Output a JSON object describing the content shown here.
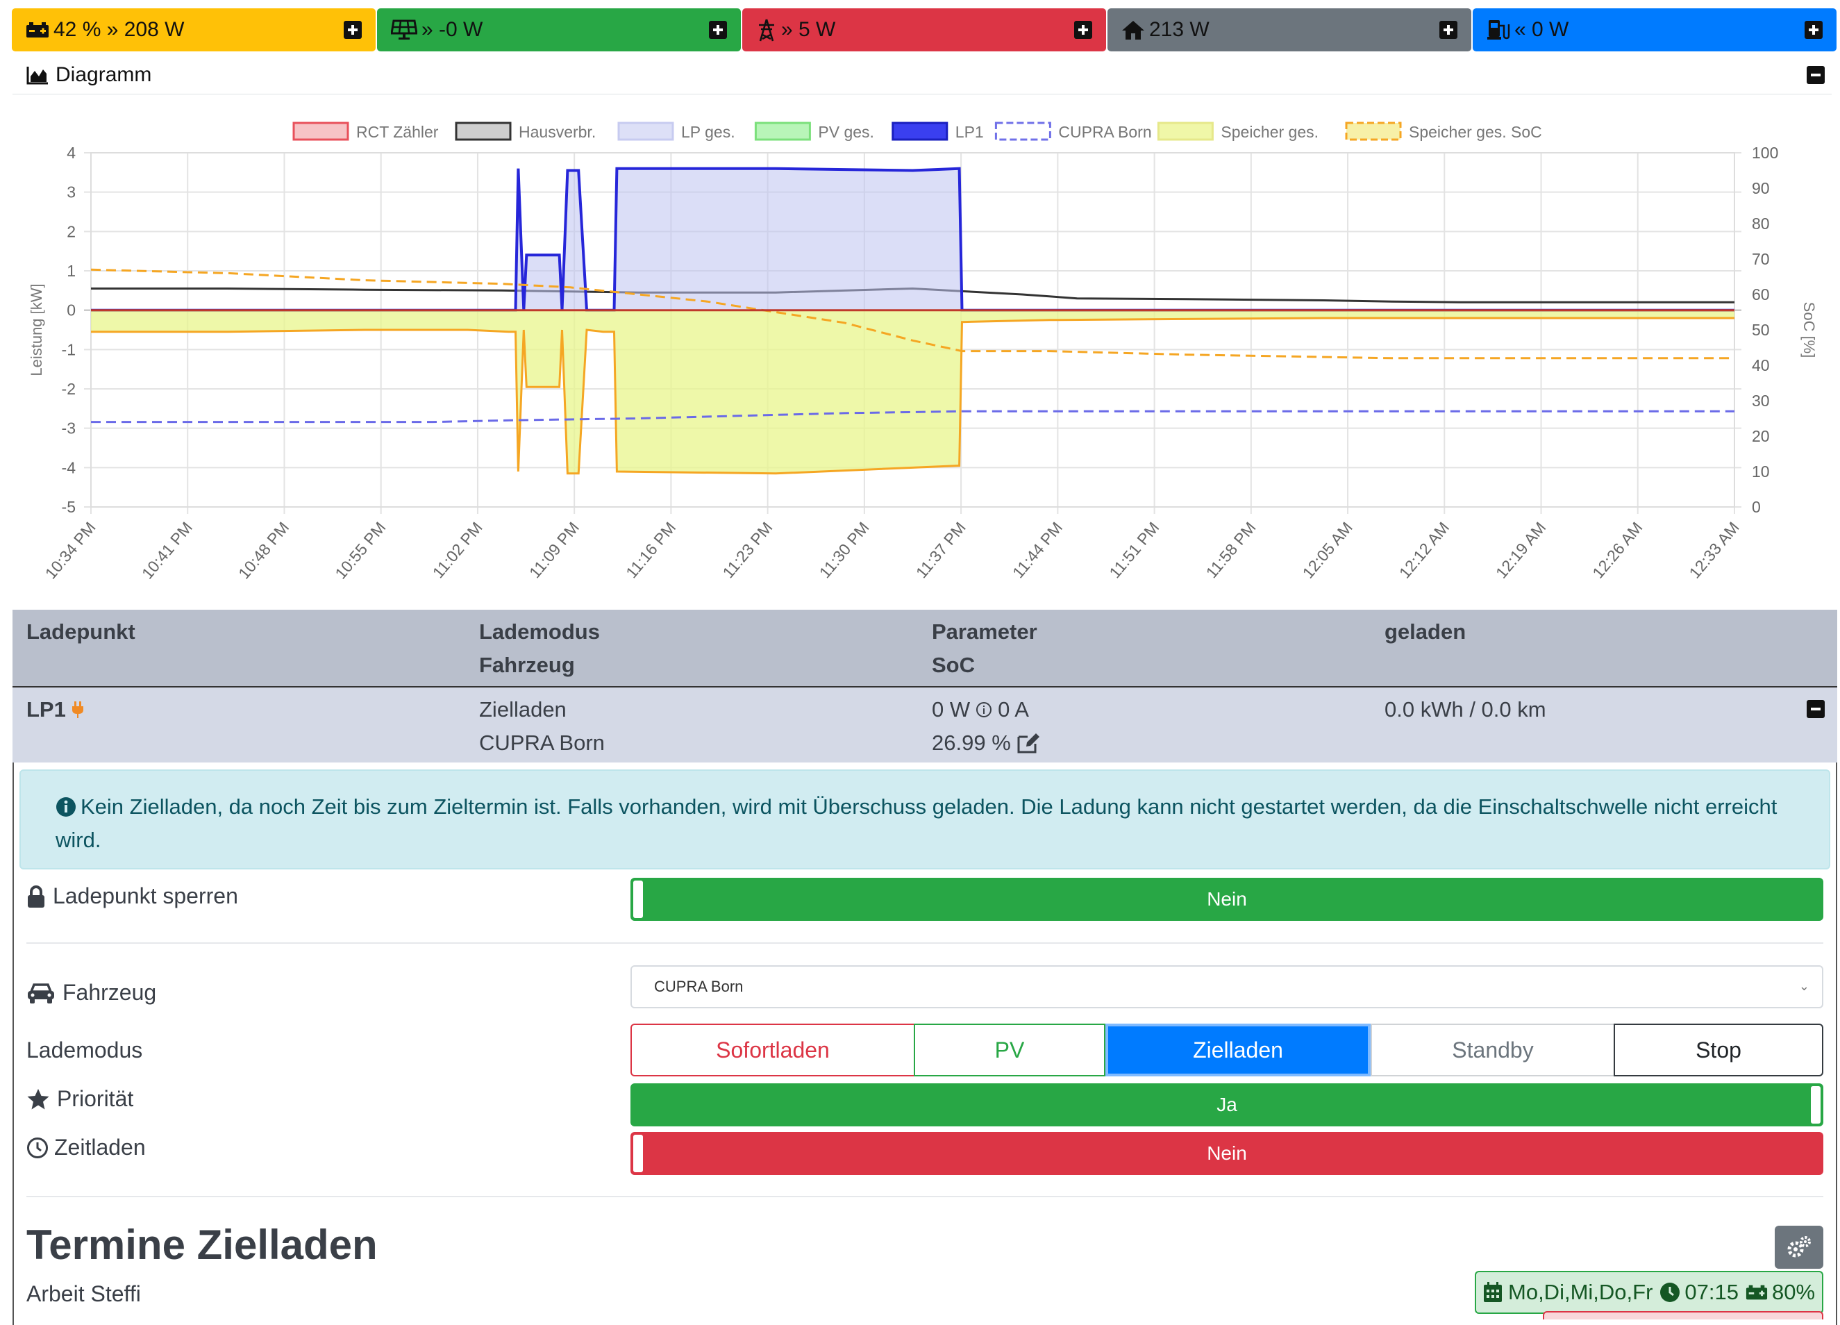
{
  "topbar": {
    "battery": {
      "text": "42 % » 208 W",
      "color": "#ffc107"
    },
    "pv": {
      "text": "» -0 W",
      "color": "#28a745"
    },
    "grid": {
      "text": "» 5 W",
      "color": "#dc3545"
    },
    "house": {
      "text": "213 W",
      "color": "#6c757d"
    },
    "charge": {
      "text": "« 0 W",
      "color": "#007bff"
    }
  },
  "diagram": {
    "title": "Diagramm"
  },
  "chart_data": {
    "type": "line",
    "ylabel": "Leistung [kW]",
    "y2label": "SoC [%]",
    "ylim": [
      -5,
      4
    ],
    "y2lim": [
      0,
      100
    ],
    "yticks": [
      "4",
      "3",
      "2",
      "1",
      "0",
      "-1",
      "-2",
      "-3",
      "-4",
      "-5"
    ],
    "y2ticks": [
      "100",
      "90",
      "80",
      "70",
      "60",
      "50",
      "40",
      "30",
      "20",
      "10",
      "0"
    ],
    "xticks": [
      "10:34 PM",
      "10:41 PM",
      "10:48 PM",
      "10:55 PM",
      "11:02 PM",
      "11:09 PM",
      "11:16 PM",
      "11:23 PM",
      "11:30 PM",
      "11:37 PM",
      "11:44 PM",
      "11:51 PM",
      "11:58 PM",
      "12:05 AM",
      "12:12 AM",
      "12:19 AM",
      "12:26 AM",
      "12:33 AM"
    ],
    "xrange_min": [
      0,
      120
    ],
    "legend": [
      {
        "name": "RCT Zähler",
        "fill": "#f7c3c6",
        "stroke": "#e8505b",
        "dash": false
      },
      {
        "name": "Hausverbr.",
        "fill": "#cfcfcf",
        "stroke": "#333333",
        "dash": false
      },
      {
        "name": "LP ges.",
        "fill": "#dde0f7",
        "stroke": "#c7cbf0",
        "dash": false
      },
      {
        "name": "PV ges.",
        "fill": "#b8f5b8",
        "stroke": "#7be07b",
        "dash": false
      },
      {
        "name": "LP1",
        "fill": "#3a3ff0",
        "stroke": "#1a1fbf",
        "dash": false
      },
      {
        "name": "CUPRA Born",
        "fill": "#ffffff",
        "stroke": "#7070e8",
        "dash": true
      },
      {
        "name": "Speicher ges.",
        "fill": "#f0f7a8",
        "stroke": "#e6e88a",
        "dash": false
      },
      {
        "name": "Speicher ges. SoC",
        "fill": "#f7f0a8",
        "stroke": "#f5a623",
        "dash": true
      }
    ],
    "series": [
      {
        "name": "Hausverbr.",
        "axis": "left",
        "color": "#333333",
        "x": [
          0,
          10,
          20,
          30,
          40,
          50,
          60,
          68,
          72,
          80,
          90,
          95,
          100,
          110,
          120
        ],
        "y": [
          0.55,
          0.55,
          0.52,
          0.5,
          0.45,
          0.45,
          0.55,
          0.4,
          0.3,
          0.28,
          0.25,
          0.22,
          0.2,
          0.2,
          0.2
        ]
      },
      {
        "name": "LP1",
        "axis": "left",
        "color": "#2626d9",
        "fill": "rgba(190,195,240,0.55)",
        "x": [
          0,
          31.0,
          31.2,
          31.6,
          31.8,
          34.2,
          34.4,
          34.8,
          35.6,
          36.2,
          36.3,
          37.4,
          38.2,
          38.4,
          39.2,
          39.4,
          50,
          60,
          63.4,
          63.6,
          120
        ],
        "y": [
          0,
          0,
          3.6,
          0,
          1.4,
          1.4,
          0,
          3.55,
          3.55,
          0,
          0,
          0,
          0,
          3.6,
          3.6,
          3.6,
          3.6,
          3.55,
          3.6,
          0,
          0
        ]
      },
      {
        "name": "Speicher ges.",
        "axis": "left",
        "color": "#f5a623",
        "fill": "rgba(232,245,140,0.75)",
        "x": [
          0,
          10,
          20,
          27.5,
          30.5,
          31.0,
          31.2,
          31.6,
          31.8,
          34.2,
          34.4,
          34.8,
          35.6,
          36.2,
          37.4,
          38.2,
          38.4,
          50,
          63.4,
          63.6,
          70,
          90,
          120
        ],
        "y": [
          -0.55,
          -0.55,
          -0.5,
          -0.5,
          -0.55,
          -0.55,
          -4.1,
          -0.5,
          -1.95,
          -1.95,
          -0.5,
          -4.15,
          -4.15,
          -0.5,
          -0.55,
          -0.55,
          -4.1,
          -4.15,
          -3.95,
          -0.3,
          -0.25,
          -0.2,
          -0.2
        ]
      },
      {
        "name": "CUPRA Born",
        "axis": "right",
        "color": "#6a6ae8",
        "dash": true,
        "x": [
          0,
          25,
          31,
          40,
          50,
          55,
          63.6,
          120
        ],
        "y": [
          24,
          24,
          24.5,
          25,
          26,
          26.5,
          27,
          27
        ]
      },
      {
        "name": "Speicher ges. SoC",
        "axis": "right",
        "color": "#f5a623",
        "dash": true,
        "x": [
          0,
          10,
          20,
          30,
          35,
          40,
          45,
          50,
          55,
          60,
          63.6,
          70,
          80,
          95,
          105,
          120
        ],
        "y": [
          67,
          66,
          64,
          63,
          62,
          60,
          58,
          55,
          52,
          47,
          44,
          44,
          43,
          42,
          42,
          42
        ]
      },
      {
        "name": "RCT Zähler",
        "axis": "left",
        "color": "#c0392b",
        "x": [
          0,
          120
        ],
        "y": [
          0,
          0
        ]
      }
    ]
  },
  "table": {
    "headers": [
      "Ladepunkt",
      "Lademodus",
      "Parameter",
      "geladen"
    ],
    "subheaders": [
      "Fahrzeug",
      "SoC"
    ],
    "lp": {
      "name": "LP1",
      "mode": "Zielladen",
      "vehicle": "CUPRA Born",
      "power": "0 W",
      "current": "0 A",
      "soc": "26.99 %",
      "charged": "0.0 kWh / 0.0 km"
    }
  },
  "alert": {
    "text": "Kein Zielladen, da noch Zeit bis zum Zieltermin ist. Falls vorhanden, wird mit Überschuss geladen. Die Ladung kann nicht gestartet werden, da die Einschaltschwelle nicht erreicht wird."
  },
  "settings": {
    "lock_label": "Ladepunkt sperren",
    "lock_value": "Nein",
    "vehicle_label": "Fahrzeug",
    "vehicle_value": "CUPRA Born",
    "mode_label": "Lademodus",
    "modes": [
      "Sofortladen",
      "PV",
      "Zielladen",
      "Standby",
      "Stop"
    ],
    "active_mode": "Zielladen",
    "priority_label": "Priorität",
    "priority_value": "Ja",
    "timed_label": "Zeitladen",
    "timed_value": "Nein"
  },
  "schedule": {
    "title": "Termine Zielladen",
    "name": "Arbeit Steffi",
    "days": "Mo,Di,Mi,Do,Fr",
    "time": "07:15",
    "soc": "80%"
  }
}
